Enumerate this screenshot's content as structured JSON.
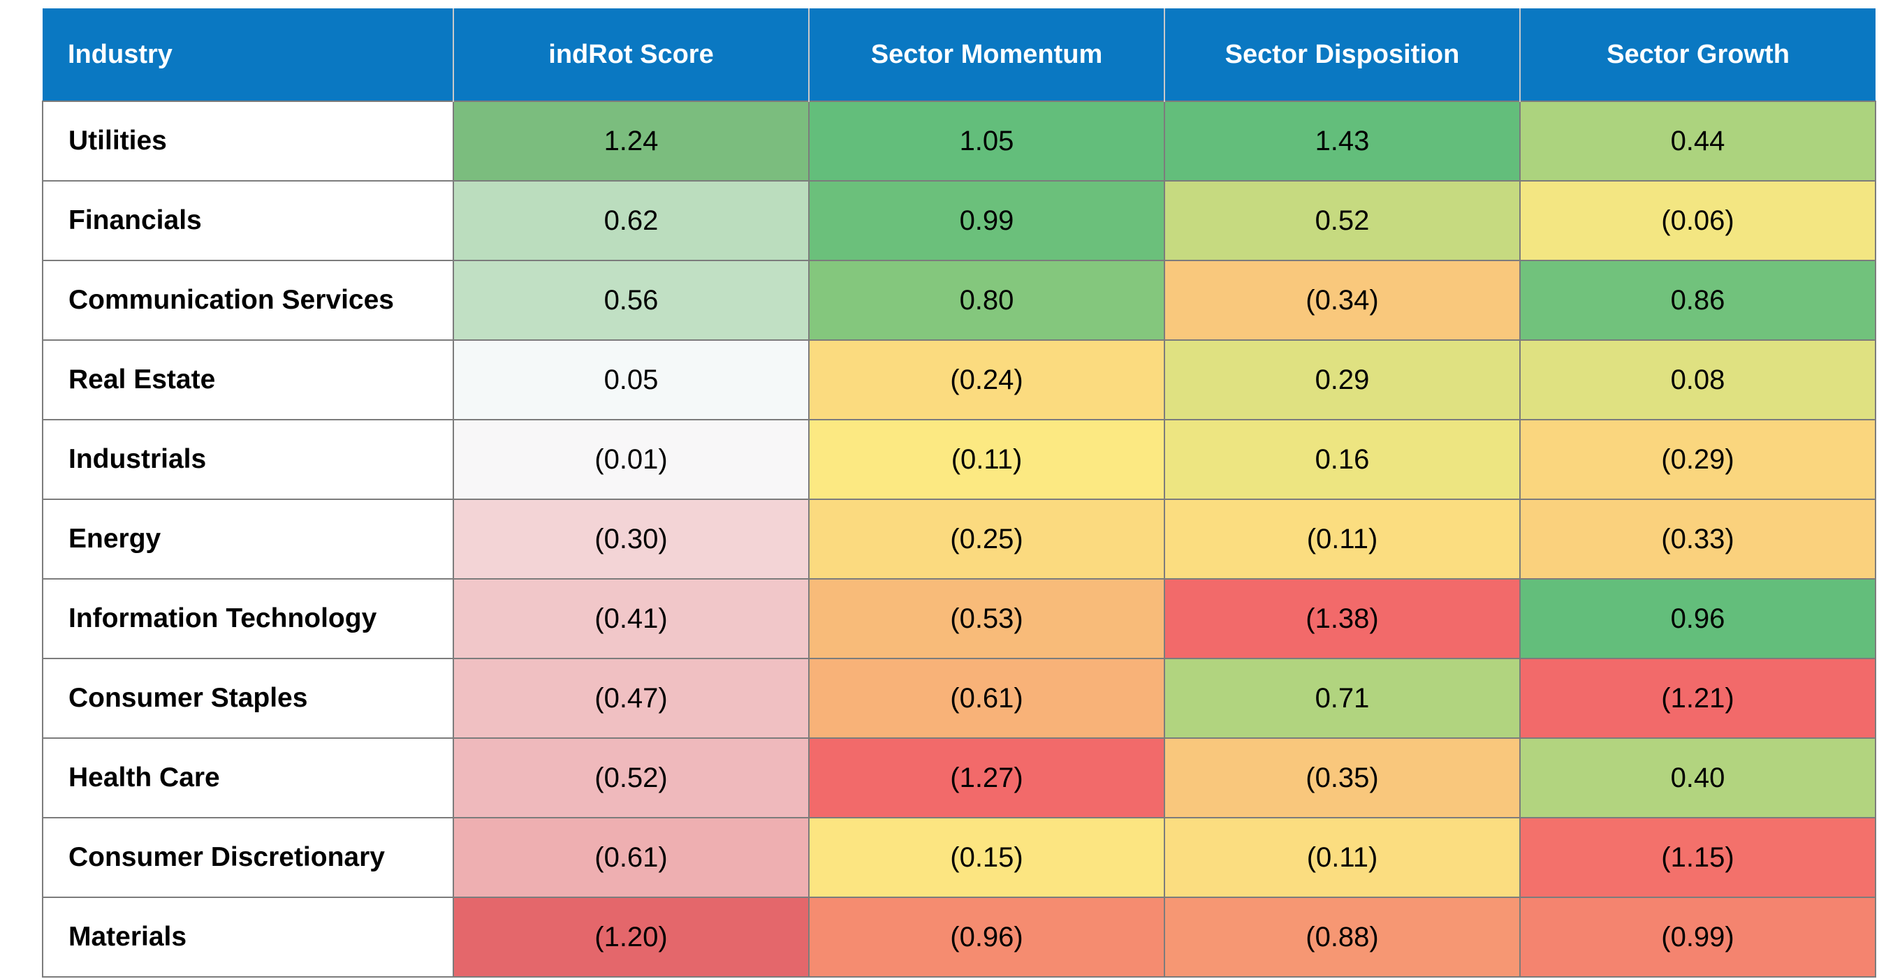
{
  "chart_data": {
    "type": "heatmap",
    "columns": [
      "Industry",
      "indRot Score",
      "Sector Momentum",
      "Sector Disposition",
      "Sector Growth"
    ],
    "rows": [
      {
        "industry": "Utilities",
        "values": [
          "1.24",
          "1.05",
          "1.43",
          "0.44"
        ]
      },
      {
        "industry": "Financials",
        "values": [
          "0.62",
          "0.99",
          "0.52",
          "(0.06)"
        ]
      },
      {
        "industry": "Communication Services",
        "values": [
          "0.56",
          "0.80",
          "(0.34)",
          "0.86"
        ]
      },
      {
        "industry": "Real Estate",
        "values": [
          "0.05",
          "(0.24)",
          "0.29",
          "0.08"
        ]
      },
      {
        "industry": "Industrials",
        "values": [
          "(0.01)",
          "(0.11)",
          "0.16",
          "(0.29)"
        ]
      },
      {
        "industry": "Energy",
        "values": [
          "(0.30)",
          "(0.25)",
          "(0.11)",
          "(0.33)"
        ]
      },
      {
        "industry": "Information Technology",
        "values": [
          "(0.41)",
          "(0.53)",
          "(1.38)",
          "0.96"
        ]
      },
      {
        "industry": "Consumer Staples",
        "values": [
          "(0.47)",
          "(0.61)",
          "0.71",
          "(1.21)"
        ]
      },
      {
        "industry": "Health Care",
        "values": [
          "(0.52)",
          "(1.27)",
          "(0.35)",
          "0.40"
        ]
      },
      {
        "industry": "Consumer Discretionary",
        "values": [
          "(0.61)",
          "(0.15)",
          "(0.11)",
          "(1.15)"
        ]
      },
      {
        "industry": "Materials",
        "values": [
          "(1.20)",
          "(0.96)",
          "(0.88)",
          "(0.99)"
        ]
      }
    ],
    "colors": {
      "header_bg": "#0a78c2",
      "header_text": "#ffffff",
      "score_column_scale": [
        "#e4676b",
        "#f8fbfc",
        "#7bbd7e"
      ],
      "component_columns_scale": [
        "#f26a6a",
        "#fce982",
        "#63be7b"
      ]
    }
  }
}
